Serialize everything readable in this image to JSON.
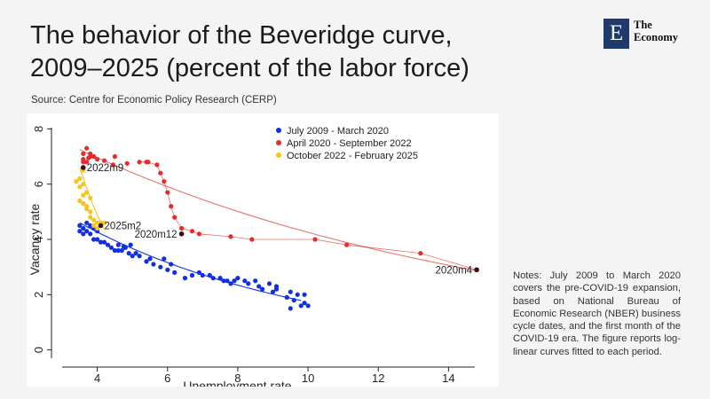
{
  "header": {
    "title_line1": "The behavior of the Beveridge curve,",
    "title_line2": "2009–2025 (percent of the labor force)",
    "source": "Source: Centre for Economic Policy Research (CERP)"
  },
  "logo": {
    "letter": "E",
    "line1": "The",
    "line2": "Economy"
  },
  "notes": "Notes: July 2009 to March 2020 covers the pre-COVID-19 expansion, based on National Bureau of Economic Research (NBER) business cycle dates, and the first month of the COVID-19 era. The figure reports log-linear curves fitted to each period.",
  "colors": {
    "blue": "#1030e0",
    "red": "#e52b2b",
    "yellow": "#f5c518",
    "fit": "#e8736b",
    "dark": "#222222"
  },
  "chart_data": {
    "type": "scatter",
    "xlabel": "Unemployment rate",
    "ylabel": "Vacancy rate",
    "xlim": [
      3.0,
      15.0
    ],
    "ylim": [
      -0.3,
      8.3
    ],
    "xticks": [
      4,
      6,
      8,
      10,
      12,
      14
    ],
    "yticks": [
      0,
      2,
      4,
      6,
      8
    ],
    "series": [
      {
        "name": "July 2009 - March 2020",
        "color": "#1030e0",
        "points": [
          [
            9.5,
            1.5
          ],
          [
            9.8,
            1.6
          ],
          [
            10.0,
            1.6
          ],
          [
            9.6,
            1.8
          ],
          [
            9.9,
            1.7
          ],
          [
            9.7,
            2.0
          ],
          [
            9.4,
            1.9
          ],
          [
            9.9,
            2.0
          ],
          [
            9.5,
            2.1
          ],
          [
            9.1,
            2.2
          ],
          [
            9.0,
            2.1
          ],
          [
            9.1,
            2.3
          ],
          [
            8.9,
            2.4
          ],
          [
            8.6,
            2.3
          ],
          [
            8.5,
            2.5
          ],
          [
            8.3,
            2.4
          ],
          [
            8.2,
            2.5
          ],
          [
            8.0,
            2.6
          ],
          [
            7.9,
            2.5
          ],
          [
            7.8,
            2.4
          ],
          [
            7.7,
            2.5
          ],
          [
            7.5,
            2.6
          ],
          [
            7.3,
            2.6
          ],
          [
            7.2,
            2.7
          ],
          [
            7.0,
            2.7
          ],
          [
            6.7,
            2.7
          ],
          [
            6.5,
            2.6
          ],
          [
            6.2,
            2.8
          ],
          [
            6.0,
            2.9
          ],
          [
            5.8,
            3.0
          ],
          [
            5.6,
            3.1
          ],
          [
            5.4,
            3.2
          ],
          [
            5.2,
            3.4
          ],
          [
            5.0,
            3.4
          ],
          [
            4.9,
            3.5
          ],
          [
            4.8,
            3.7
          ],
          [
            4.7,
            3.6
          ],
          [
            4.6,
            3.8
          ],
          [
            4.5,
            3.6
          ],
          [
            4.4,
            3.7
          ],
          [
            4.3,
            3.8
          ],
          [
            4.2,
            3.9
          ],
          [
            4.1,
            3.9
          ],
          [
            4.0,
            4.0
          ],
          [
            3.9,
            4.0
          ],
          [
            3.8,
            4.2
          ],
          [
            3.7,
            4.3
          ],
          [
            3.6,
            4.4
          ],
          [
            3.6,
            4.2
          ],
          [
            3.5,
            4.5
          ],
          [
            3.7,
            4.6
          ],
          [
            3.8,
            4.5
          ],
          [
            3.9,
            4.4
          ],
          [
            4.0,
            4.3
          ],
          [
            3.5,
            4.3
          ],
          [
            5.5,
            3.3
          ],
          [
            6.1,
            3.1
          ],
          [
            5.9,
            3.3
          ],
          [
            8.7,
            2.2
          ],
          [
            5.1,
            3.5
          ],
          [
            4.6,
            3.6
          ],
          [
            6.9,
            2.8
          ],
          [
            7.6,
            2.5
          ],
          [
            4.95,
            3.8
          ],
          [
            4.75,
            3.75
          ]
        ]
      },
      {
        "name": "April 2020 - September 2022",
        "color": "#e52b2b",
        "points": [
          [
            14.8,
            2.9
          ],
          [
            13.2,
            3.5
          ],
          [
            11.1,
            3.8
          ],
          [
            10.2,
            4.0
          ],
          [
            8.4,
            4.0
          ],
          [
            7.8,
            4.1
          ],
          [
            6.9,
            4.2
          ],
          [
            6.7,
            4.3
          ],
          [
            6.4,
            4.4
          ],
          [
            6.2,
            4.8
          ],
          [
            6.1,
            5.2
          ],
          [
            6.0,
            5.7
          ],
          [
            5.9,
            6.1
          ],
          [
            5.8,
            6.4
          ],
          [
            5.7,
            6.7
          ],
          [
            5.4,
            6.8
          ],
          [
            5.2,
            6.8
          ],
          [
            4.5,
            7.0
          ],
          [
            4.0,
            6.9
          ],
          [
            3.9,
            7.0
          ],
          [
            3.8,
            7.0
          ],
          [
            3.6,
            6.8
          ],
          [
            3.6,
            7.1
          ],
          [
            3.7,
            7.3
          ],
          [
            3.6,
            6.9
          ],
          [
            3.8,
            7.1
          ],
          [
            3.7,
            6.8
          ],
          [
            4.2,
            6.85
          ],
          [
            3.75,
            6.95
          ],
          [
            4.45,
            6.7
          ],
          [
            4.85,
            6.75
          ],
          [
            5.45,
            6.8
          ]
        ]
      },
      {
        "name": "October 2022 - February 2025",
        "color": "#f5c518",
        "points": [
          [
            3.6,
            6.5
          ],
          [
            3.5,
            6.2
          ],
          [
            3.6,
            6.0
          ],
          [
            3.5,
            5.9
          ],
          [
            3.7,
            5.7
          ],
          [
            3.8,
            5.5
          ],
          [
            3.6,
            5.3
          ],
          [
            3.7,
            5.1
          ],
          [
            3.8,
            5.0
          ],
          [
            3.8,
            4.8
          ],
          [
            3.9,
            4.7
          ],
          [
            4.0,
            4.6
          ],
          [
            4.1,
            4.6
          ],
          [
            3.9,
            4.5
          ],
          [
            4.0,
            4.4
          ],
          [
            4.2,
            4.6
          ],
          [
            3.7,
            5.2
          ],
          [
            3.5,
            5.4
          ],
          [
            3.6,
            5.6
          ],
          [
            3.4,
            6.1
          ]
        ]
      }
    ],
    "fits": [
      {
        "name": "July 2009 - March 2020 fit",
        "x": [
          3.5,
          9.8
        ],
        "slope": -0.15,
        "anchor": [
          3.5,
          4.6
        ]
      },
      {
        "name": "April 2020 - September 2022 fit",
        "x": [
          3.5,
          14.8
        ],
        "slope": -0.082,
        "anchor": [
          3.5,
          7.25
        ]
      },
      {
        "name": "October 2022 - February 2025 fit",
        "x": [
          3.5,
          4.2
        ],
        "slope": -0.6,
        "anchor": [
          3.5,
          6.6
        ]
      }
    ],
    "annotations": [
      {
        "label": "2022m9",
        "x": 3.6,
        "y": 6.6
      },
      {
        "label": "2025m2",
        "x": 4.1,
        "y": 4.5
      },
      {
        "label": "2020m12",
        "x": 6.4,
        "y": 4.2
      },
      {
        "label": "2020m4",
        "x": 14.8,
        "y": 2.9
      }
    ]
  }
}
